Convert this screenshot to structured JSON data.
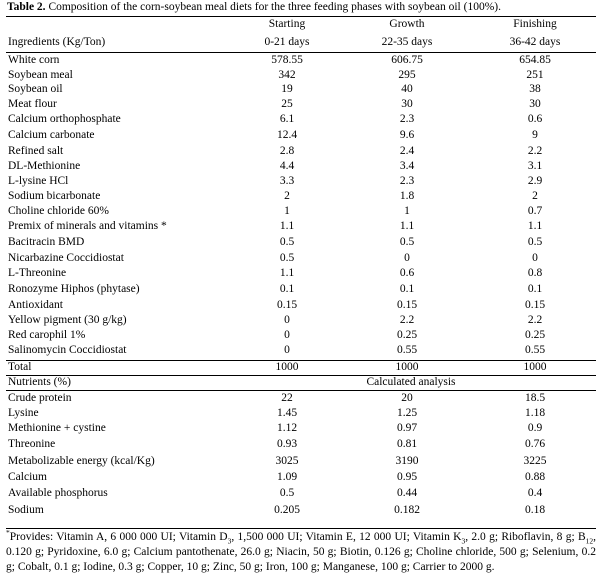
{
  "table": {
    "caption_label": "Table 2.",
    "caption_text": " Composition of the corn-soybean meal diets for the three feeding phases with soybean oil (100%).",
    "header": {
      "col0": "Ingredients (Kg/Ton)",
      "phase_names": [
        "Starting",
        "Growth",
        "Finishing"
      ],
      "phase_days": [
        "0-21 days",
        "22-35 days",
        "36-42 days"
      ]
    },
    "ingredients": [
      [
        "White corn",
        "578.55",
        "606.75",
        "654.85"
      ],
      [
        "Soybean meal",
        "342",
        "295",
        "251"
      ],
      [
        "Soybean oil",
        "19",
        "40",
        "38"
      ],
      [
        "Meat flour",
        "25",
        "30",
        "30"
      ],
      [
        "Calcium orthophosphate",
        "6.1",
        "2.3",
        "0.6"
      ],
      [
        "Calcium carbonate",
        "12.4",
        "9.6",
        "9"
      ],
      [
        "Refined salt",
        "2.8",
        "2.4",
        "2.2"
      ],
      [
        "DL-Methionine",
        "4.4",
        "3.4",
        "3.1"
      ],
      [
        "L-lysine HCl",
        "3.3",
        "2.3",
        "2.9"
      ],
      [
        "Sodium bicarbonate",
        "2",
        "1.8",
        "2"
      ],
      [
        "Choline chloride 60%",
        "1",
        "1",
        "0.7"
      ],
      [
        "Premix of minerals and vitamins *",
        "1.1",
        "1.1",
        "1.1"
      ],
      [
        "Bacitracin BMD",
        "0.5",
        "0.5",
        "0.5"
      ],
      [
        "Nicarbazine Coccidiostat",
        "0.5",
        "0",
        "0"
      ],
      [
        "L-Threonine",
        "1.1",
        "0.6",
        "0.8"
      ],
      [
        "Ronozyme Hiphos (phytase)",
        "0.1",
        "0.1",
        "0.1"
      ],
      [
        "Antioxidant",
        "0.15",
        "0.15",
        "0.15"
      ],
      [
        "Yellow pigment (30 g/kg)",
        "0",
        "2.2",
        "2.2"
      ],
      [
        "Red carophil 1%",
        "0",
        "0.25",
        "0.25"
      ],
      [
        "Salinomycin Coccidiostat",
        "0",
        "0.55",
        "0.55"
      ]
    ],
    "total": [
      "Total",
      "1000",
      "1000",
      "1000"
    ],
    "nutrients_header": {
      "label": "Nutrients (%)",
      "analysis": "Calculated analysis"
    },
    "nutrients": [
      [
        "Crude protein",
        "22",
        "20",
        "18.5"
      ],
      [
        "Lysine",
        "1.45",
        "1.25",
        "1.18"
      ],
      [
        "Methionine + cystine",
        "1.12",
        "0.97",
        "0.9"
      ],
      [
        "Threonine",
        "0.93",
        "0.81",
        "0.76"
      ],
      [
        "Metabolizable energy (kcal/Kg)",
        "3025",
        "3190",
        "3225"
      ],
      [
        "Calcium",
        "1.09",
        "0.95",
        "0.88"
      ],
      [
        "Available phosphorus",
        "0.5",
        "0.44",
        "0.4"
      ],
      [
        "Sodium",
        "0.205",
        "0.182",
        "0.18"
      ]
    ],
    "footnote": {
      "marker": "*",
      "p1": "Provides: Vitamin A, 6 000 000 UI; Vitamin D",
      "s1": "3",
      "p2": ", 1,500 000 UI; Vitamin E, 12 000 UI; Vitamin K",
      "s2": "3",
      "p3": ", 2.0 g; Riboflavin, 8 g; B",
      "s3": "12",
      "p4": ", 0.120 g; Pyridoxine, 6.0 g; Calcium pantothenate, 26.0 g; Niacin, 50 g; Biotin, 0.126 g; Choline chloride, 500 g; Selenium, 0.2 g; Cobalt, 0.1 g; Iodine, 0.3 g; Copper, 10 g; Zinc, 50 g; Iron, 100 g; Manganese, 100 g; Carrier to 2000 g."
    }
  }
}
